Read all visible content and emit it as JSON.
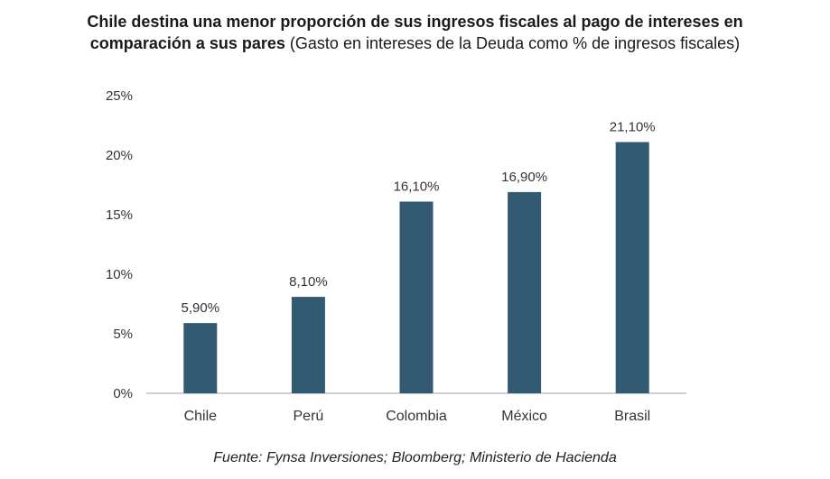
{
  "title": {
    "bold_line1": "Chile destina una menor proporción de sus ingresos fiscales al pago de intereses en",
    "bold_line2": "comparación a sus pares",
    "subtitle": "(Gasto en intereses de la Deuda como % de ingresos fiscales)"
  },
  "source": "Fuente: Fynsa Inversiones; Bloomberg; Ministerio de Hacienda",
  "colors": {
    "bar": "#325a72",
    "axis": "#bfbfbf",
    "text": "#333333"
  },
  "chart_data": {
    "type": "bar",
    "categories": [
      "Chile",
      "Perú",
      "Colombia",
      "México",
      "Brasil"
    ],
    "values": [
      5.9,
      8.1,
      16.1,
      16.9,
      21.1
    ],
    "data_labels": [
      "5,90%",
      "8,10%",
      "16,10%",
      "16,90%",
      "21,10%"
    ],
    "y_ticks": [
      0,
      5,
      10,
      15,
      20,
      25
    ],
    "y_tick_labels": [
      "0%",
      "5%",
      "10%",
      "15%",
      "20%",
      "25%"
    ],
    "ylim": [
      0,
      25
    ],
    "grid": false,
    "legend": "none"
  }
}
